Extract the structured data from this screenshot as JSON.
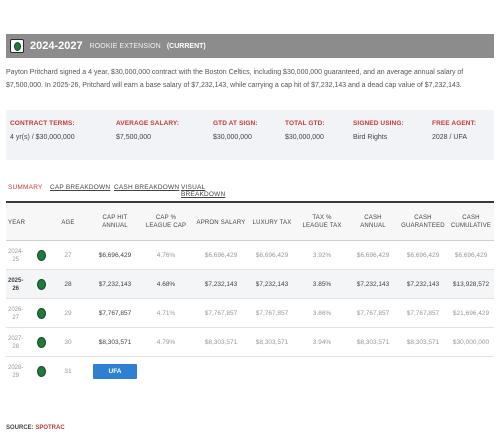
{
  "header": {
    "years": "2024-2027",
    "type": "ROOKIE EXTENSION",
    "status": "(CURRENT)"
  },
  "summary": "Payton Pritchard signed a 4 year, $30,000,000 contract with the Boston Celtics, including $30,000,000 guaranteed, and an average annual salary of $7,500,000. In 2025-26, Pritchard will earn a base salary of $7,232,143, while carrying a cap hit of $7,232,143 and a dead cap value of $7,232,143.",
  "terms": [
    {
      "label": "CONTRACT TERMS:",
      "value": "4 yr(s) / $30,000,000"
    },
    {
      "label": "AVERAGE SALARY:",
      "value": "$7,500,000"
    },
    {
      "label": "GTD AT SIGN:",
      "value": "$30,000,000"
    },
    {
      "label": "TOTAL GTD:",
      "value": "$30,000,000"
    },
    {
      "label": "SIGNED USING:",
      "value": "Bird Rights"
    },
    {
      "label": "FREE AGENT:",
      "value": "2028 / UFA"
    }
  ],
  "tabs": [
    "SUMMARY",
    "CAP BREAKDOWN",
    "CASH BREAKDOWN",
    "VISUAL BREAKDOWN"
  ],
  "columns": [
    [
      "YEAR",
      ""
    ],
    [
      "AGE",
      ""
    ],
    [
      "CAP HIT",
      "ANNUAL"
    ],
    [
      "CAP %",
      "LEAGUE CAP"
    ],
    [
      "APRON SALARY",
      ""
    ],
    [
      "LUXURY TAX",
      ""
    ],
    [
      "TAX %",
      "LEAGUE TAX"
    ],
    [
      "CASH",
      "ANNUAL"
    ],
    [
      "CASH",
      "GUARANTEED"
    ],
    [
      "CASH",
      "CUMULATIVE"
    ]
  ],
  "rows": [
    {
      "year": [
        "2024-",
        "25"
      ],
      "age": "27",
      "cap_hit": "$6,696,429",
      "cap_pct": "4.76%",
      "apron": "$6,696,429",
      "lux": "$6,696,429",
      "tax_pct": "3.92%",
      "cash": "$6,696,429",
      "gtd": "$6,696,429",
      "cum": "$6,696,429"
    },
    {
      "year": [
        "2025-",
        "26"
      ],
      "age": "28",
      "cap_hit": "$7,232,143",
      "cap_pct": "4.68%",
      "apron": "$7,232,143",
      "lux": "$7,232,143",
      "tax_pct": "3.85%",
      "cash": "$7,232,143",
      "gtd": "$7,232,143",
      "cum": "$13,928,572"
    },
    {
      "year": [
        "2026-",
        "27"
      ],
      "age": "29",
      "cap_hit": "$7,767,857",
      "cap_pct": "4.71%",
      "apron": "$7,767,857",
      "lux": "$7,767,857",
      "tax_pct": "3.86%",
      "cash": "$7,767,857",
      "gtd": "$7,767,857",
      "cum": "$21,696,429"
    },
    {
      "year": [
        "2027-",
        "28"
      ],
      "age": "30",
      "cap_hit": "$8,303,571",
      "cap_pct": "4.79%",
      "apron": "$8,303,571",
      "lux": "$8,303,571",
      "tax_pct": "3.94%",
      "cash": "$8,303,571",
      "gtd": "$8,303,571",
      "cum": "$30,000,000"
    },
    {
      "year": [
        "2028-",
        "29"
      ],
      "age": "31",
      "ufa": "UFA"
    }
  ],
  "source": {
    "label": "SOURCE:",
    "name": "SPOTRAC"
  },
  "colors": {
    "header_bg": "#8c8c8c",
    "accent_red": "#c03a3a",
    "ufa_blue": "#2f7fd3",
    "celtics_green": "#1f7a3c"
  },
  "icons": {
    "team_logo": "shamrock-icon"
  }
}
